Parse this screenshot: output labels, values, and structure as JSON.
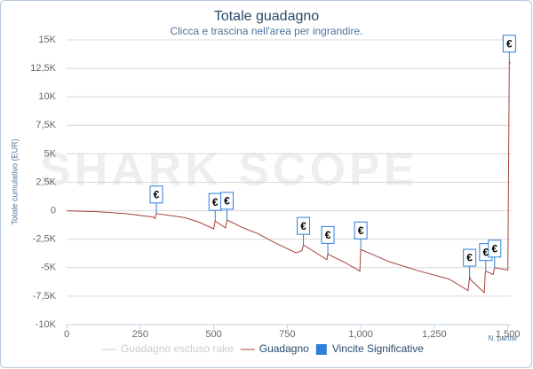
{
  "chart_data": {
    "type": "line",
    "title": "Totale guadagno",
    "subtitle": "Clicca e trascina nell'area per ingrandire.",
    "watermark": "SHARK SCOPE",
    "y_label": "Totale cumulativo (EUR)",
    "x_label": "N. partite",
    "xlim": [
      0,
      1510
    ],
    "xticks": [
      0,
      250,
      500,
      750,
      {
        "value": 1000,
        "label": "1,000"
      },
      {
        "value": 1250,
        "label": "1,250"
      },
      {
        "value": 1500,
        "label": "1,500"
      }
    ],
    "ylim": [
      -10000,
      15000
    ],
    "yticks": [
      {
        "value": -10000,
        "label": "-10K"
      },
      {
        "value": -7500,
        "label": "-7,5K"
      },
      {
        "value": -5000,
        "label": "-5K"
      },
      {
        "value": -2500,
        "label": "-2,5K"
      },
      0,
      {
        "value": 2500,
        "label": "2,5K"
      },
      {
        "value": 5000,
        "label": "5K"
      },
      {
        "value": 7500,
        "label": "7,5K"
      },
      {
        "value": 10000,
        "label": "10K"
      },
      {
        "value": 12500,
        "label": "12,5K"
      },
      {
        "value": 15000,
        "label": "15K"
      }
    ],
    "grid": true,
    "series": [
      {
        "name": "Guadagno escluso rake",
        "color": "#cccccc",
        "visible": false
      },
      {
        "name": "Guadagno",
        "color": "#a8403c",
        "visible": true,
        "x": [
          0,
          100,
          200,
          295,
          300,
          305,
          400,
          450,
          500,
          505,
          540,
          545,
          600,
          650,
          700,
          780,
          800,
          805,
          885,
          888,
          950,
          997,
          1000,
          1100,
          1200,
          1300,
          1365,
          1370,
          1375,
          1420,
          1423,
          1425,
          1450,
          1455,
          1500,
          1505,
          1510
        ],
        "values": [
          0,
          -80,
          -250,
          -550,
          -700,
          -250,
          -600,
          -1000,
          -1600,
          -900,
          -1500,
          -800,
          -1500,
          -2000,
          -2700,
          -3700,
          -3500,
          -3000,
          -4300,
          -3800,
          -4600,
          -5300,
          -3400,
          -4500,
          -5300,
          -6000,
          -7000,
          -5800,
          -6100,
          -7200,
          -5500,
          -5300,
          -5600,
          -5000,
          -5200,
          13000,
          13000
        ]
      },
      {
        "name": "Vincite Significative",
        "color": "#2f7ed8",
        "visible": true,
        "type": "flags",
        "flag_text": "€",
        "x": [
          305,
          505,
          545,
          805,
          888,
          1000,
          1370,
          1425,
          1455,
          1505
        ],
        "values": [
          -250,
          -900,
          -800,
          -3000,
          -3800,
          -3400,
          -5800,
          -5300,
          -5000,
          13000
        ]
      }
    ]
  }
}
